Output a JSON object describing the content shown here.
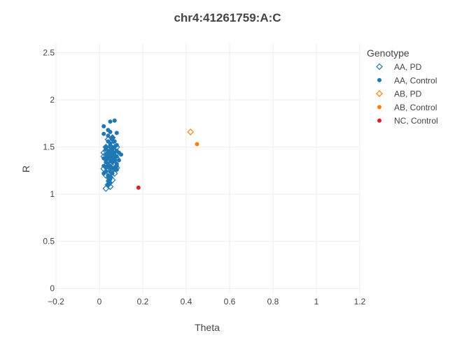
{
  "chart_data": {
    "type": "scatter",
    "title": "chr4:41261759:A:C",
    "xlabel": "Theta",
    "ylabel": "R",
    "xlim": [
      -0.2,
      1.2
    ],
    "ylim": [
      -0.05,
      2.6
    ],
    "x_ticks": [
      -0.2,
      0,
      0.2,
      0.4,
      0.6,
      0.8,
      1,
      1.2
    ],
    "x_tick_labels": [
      "−0.2",
      "0",
      "0.2",
      "0.4",
      "0.6",
      "0.8",
      "1",
      "1.2"
    ],
    "y_ticks": [
      0,
      0.5,
      1,
      1.5,
      2,
      2.5
    ],
    "y_tick_labels": [
      "0",
      "0.5",
      "1",
      "1.5",
      "2",
      "2.5"
    ],
    "grid": true,
    "legend": {
      "title": "Genotype",
      "placement": "top-right"
    },
    "series": [
      {
        "name": "AA, PD",
        "marker": "diamond-open",
        "color": "#1f77b4",
        "x": [
          0.02,
          0.03,
          0.04,
          0.05,
          0.06,
          0.07,
          0.08,
          0.03,
          0.05,
          0.07,
          0.02,
          0.04,
          0.06,
          0.08,
          0.03,
          0.05,
          0.07,
          0.04,
          0.06,
          0.02,
          0.05,
          0.03,
          0.07,
          0.06,
          0.04,
          0.05,
          0.08,
          0.03,
          0.06,
          0.04,
          0.03,
          0.05,
          0.06
        ],
        "y": [
          1.27,
          1.3,
          1.35,
          1.4,
          1.42,
          1.45,
          1.38,
          1.5,
          1.55,
          1.33,
          1.44,
          1.48,
          1.52,
          1.28,
          1.2,
          1.25,
          1.36,
          1.58,
          1.15,
          1.4,
          1.32,
          1.46,
          1.22,
          1.6,
          1.1,
          1.18,
          1.5,
          1.38,
          1.43,
          1.3,
          1.06,
          1.08,
          1.26
        ]
      },
      {
        "name": "AA, Control",
        "marker": "circle",
        "color": "#1f77b4",
        "x": [
          0.02,
          0.03,
          0.04,
          0.05,
          0.06,
          0.07,
          0.08,
          0.09,
          0.1,
          0.03,
          0.04,
          0.05,
          0.06,
          0.07,
          0.08,
          0.02,
          0.04,
          0.06,
          0.08,
          0.05,
          0.03,
          0.07,
          0.04,
          0.06,
          0.05,
          0.03,
          0.07,
          0.05,
          0.04,
          0.06,
          0.08,
          0.05,
          0.06,
          0.04,
          0.07,
          0.03,
          0.05,
          0.06,
          0.04,
          0.05,
          0.07,
          0.06,
          0.05,
          0.04,
          0.06,
          0.03,
          0.05,
          0.07,
          0.02,
          0.09,
          0.04,
          0.06,
          0.05,
          0.08,
          0.03,
          0.04,
          0.06,
          0.05,
          0.07,
          0.05,
          0.04,
          0.06,
          0.08,
          0.05,
          0.02,
          0.04,
          0.08,
          0.04,
          0.07,
          0.02,
          0.05,
          0.03
        ],
        "y": [
          1.3,
          1.34,
          1.38,
          1.42,
          1.4,
          1.36,
          1.32,
          1.44,
          1.42,
          1.5,
          1.46,
          1.52,
          1.48,
          1.28,
          1.26,
          1.22,
          1.3,
          1.34,
          1.4,
          1.18,
          1.38,
          1.44,
          1.56,
          1.58,
          1.24,
          1.42,
          1.5,
          1.35,
          1.2,
          1.28,
          1.46,
          1.4,
          1.36,
          1.32,
          1.26,
          1.48,
          1.54,
          1.46,
          1.44,
          1.3,
          1.38,
          1.22,
          1.16,
          1.14,
          1.5,
          1.36,
          1.46,
          1.42,
          1.38,
          1.36,
          1.62,
          1.6,
          1.12,
          1.3,
          1.24,
          1.4,
          1.34,
          1.5,
          1.56,
          1.28,
          1.18,
          1.44,
          1.52,
          1.66,
          1.64,
          1.68,
          1.65,
          1.1,
          1.78,
          1.72,
          1.77,
          1.28
        ]
      },
      {
        "name": "AB, PD",
        "marker": "diamond-open",
        "color": "#ff7f0e",
        "x": [
          0.42
        ],
        "y": [
          1.66
        ]
      },
      {
        "name": "AB, Control",
        "marker": "circle",
        "color": "#ff7f0e",
        "x": [
          0.45
        ],
        "y": [
          1.53
        ]
      },
      {
        "name": "NC, Control",
        "marker": "circle",
        "color": "#d62728",
        "x": [
          0.18
        ],
        "y": [
          1.07
        ]
      }
    ]
  }
}
